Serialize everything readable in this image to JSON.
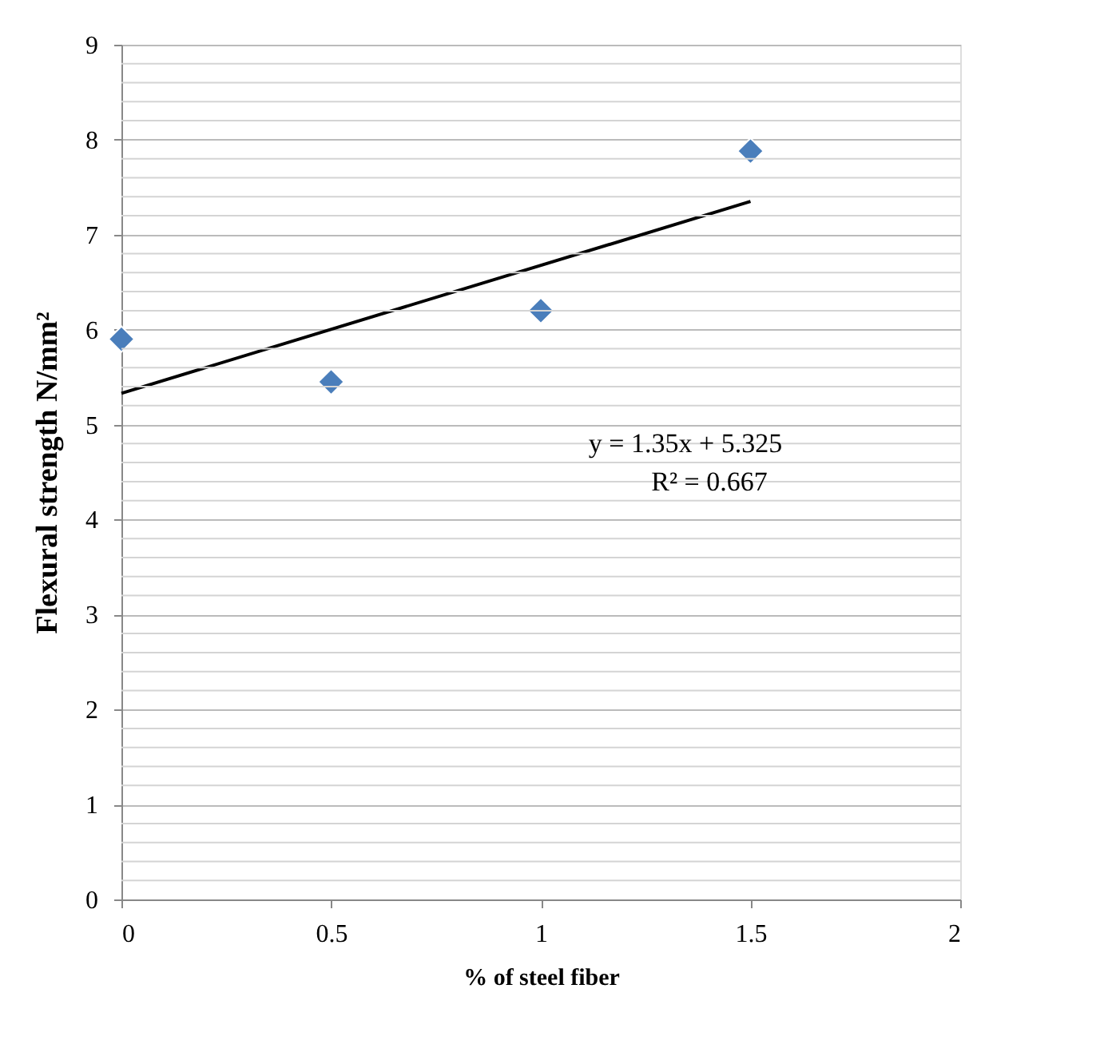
{
  "chart_data": {
    "type": "scatter",
    "xlabel": "% of steel fiber",
    "ylabel": "Flexural strength N/mm²",
    "x": [
      0,
      0.5,
      1,
      1.5
    ],
    "series": [
      {
        "type": "scatter",
        "color": "#4a7ebb",
        "marker": "diamond",
        "values": [
          5.9,
          5.45,
          6.2,
          7.88
        ]
      },
      {
        "type": "line",
        "color": "#000000",
        "marker": "none",
        "x": [
          0,
          1.5
        ],
        "values": [
          5.33,
          7.35
        ]
      }
    ],
    "xlim": [
      0,
      2
    ],
    "xticks": [
      0,
      0.5,
      1,
      1.5,
      2
    ],
    "ylim": [
      0,
      9
    ],
    "yticks": [
      0,
      {
        "value": 0.2,
        "label": null
      },
      {
        "value": 0.4,
        "label": null
      },
      {
        "value": 0.6,
        "label": null
      },
      {
        "value": 0.8,
        "label": null
      },
      1,
      {
        "value": 1.2,
        "label": null
      },
      {
        "value": 1.4,
        "label": null
      },
      {
        "value": 1.6,
        "label": null
      },
      {
        "value": 1.8,
        "label": null
      },
      2,
      {
        "value": 2.2,
        "label": null
      },
      {
        "value": 2.4,
        "label": null
      },
      {
        "value": 2.6,
        "label": null
      },
      {
        "value": 2.8,
        "label": null
      },
      3,
      {
        "value": 3.2,
        "label": null
      },
      {
        "value": 3.4,
        "label": null
      },
      {
        "value": 3.6,
        "label": null
      },
      {
        "value": 3.8,
        "label": null
      },
      4,
      {
        "value": 4.2,
        "label": null
      },
      {
        "value": 4.4,
        "label": null
      },
      {
        "value": 4.6,
        "label": null
      },
      {
        "value": 4.8,
        "label": null
      },
      5,
      {
        "value": 5.2,
        "label": null
      },
      {
        "value": 5.4,
        "label": null
      },
      {
        "value": 5.6,
        "label": null
      },
      {
        "value": 5.8,
        "label": null
      },
      6,
      {
        "value": 6.2,
        "label": null
      },
      {
        "value": 6.4,
        "label": null
      },
      {
        "value": 6.6,
        "label": null
      },
      {
        "value": 6.8,
        "label": null
      },
      7,
      {
        "value": 7.2,
        "label": null
      },
      {
        "value": 7.4,
        "label": null
      },
      {
        "value": 7.6,
        "label": null
      },
      {
        "value": 7.8,
        "label": null
      },
      8,
      {
        "value": 8.2,
        "label": null
      },
      {
        "value": 8.4,
        "label": null
      },
      {
        "value": 8.6,
        "label": null
      },
      {
        "value": 8.8,
        "label": null
      },
      9
    ],
    "grid": "y",
    "annotations": [
      "y = 1.35x + 5.325",
      "R² = 0.667"
    ]
  }
}
